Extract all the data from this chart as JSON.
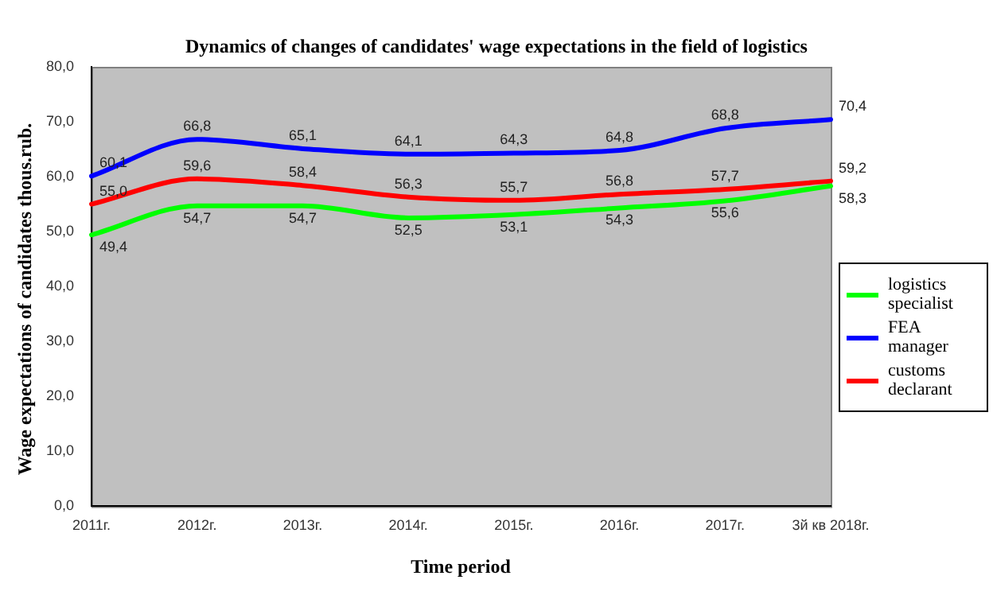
{
  "chart_data": {
    "type": "line",
    "title": "Dynamics of changes of candidates' wage expectations in the field of  logistics",
    "xlabel": "Time period",
    "ylabel": "Wage expectations of candidates thous.rub.",
    "categories": [
      "2011г.",
      "2012г.",
      "2013г.",
      "2014г.",
      "2015г.",
      "2016г.",
      "2017г.",
      "3й кв 2018г."
    ],
    "series": [
      {
        "name": "logistics specialist",
        "color": "#00ff00",
        "values": [
          49.4,
          54.7,
          54.7,
          52.5,
          53.1,
          54.3,
          55.6,
          58.3
        ],
        "value_labels": [
          "49,4",
          "54,7",
          "54,7",
          "52,5",
          "53,1",
          "54,3",
          "55,6",
          "58,3"
        ]
      },
      {
        "name": "FEA manager",
        "color": "#0000ff",
        "values": [
          60.1,
          66.8,
          65.1,
          64.1,
          64.3,
          64.8,
          68.8,
          70.4
        ],
        "value_labels": [
          "60,1",
          "66,8",
          "65,1",
          "64,1",
          "64,3",
          "64,8",
          "68,8",
          "70,4"
        ]
      },
      {
        "name": "customs declarant",
        "color": "#ff0000",
        "values": [
          55.0,
          59.6,
          58.4,
          56.3,
          55.7,
          56.8,
          57.7,
          59.2
        ],
        "value_labels": [
          "55,0",
          "59,6",
          "58,4",
          "56,3",
          "55,7",
          "56,8",
          "57,7",
          "59,2"
        ]
      }
    ],
    "ylim": [
      0,
      80
    ],
    "yticks": [
      {
        "value": 0,
        "label": "0,0"
      },
      {
        "value": 10,
        "label": "10,0"
      },
      {
        "value": 20,
        "label": "20,0"
      },
      {
        "value": 30,
        "label": "30,0"
      },
      {
        "value": 40,
        "label": "40,0"
      },
      {
        "value": 50,
        "label": "50,0"
      },
      {
        "value": 60,
        "label": "60,0"
      },
      {
        "value": 70,
        "label": "70,0"
      },
      {
        "value": 80,
        "label": "80,0"
      }
    ],
    "grid": false,
    "legend": "right",
    "marker": "none",
    "line_style": "solid"
  }
}
